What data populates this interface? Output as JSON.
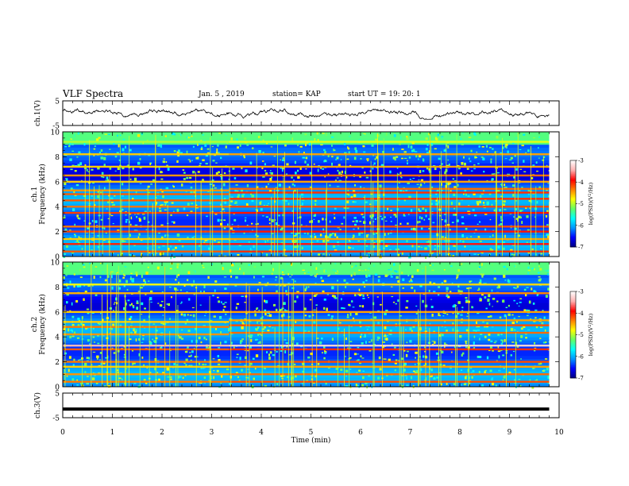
{
  "header": {
    "title": "VLF Spectra",
    "date": "Jan. 5 , 2019",
    "station": "station= KAP",
    "start": "start UT =  19: 20: 1"
  },
  "colors": {
    "colormap": [
      "#00007f",
      "#0000ff",
      "#0096ff",
      "#00ffff",
      "#64ff64",
      "#ffff00",
      "#ff8000",
      "#ff0000",
      "#ffb0b0",
      "#ffffff"
    ]
  },
  "chart_data": [
    {
      "type": "line",
      "panel": "ch1-waveform",
      "ylabel": "ch.1(V)",
      "ylim": [
        -5,
        5
      ],
      "yticks": [
        "5",
        "-5"
      ],
      "xlim": [
        0,
        10
      ],
      "x_extent": [
        0,
        9.8
      ],
      "description_values": {
        "mean": 0,
        "amplitude_range": [
          -2.5,
          2.5
        ]
      }
    },
    {
      "type": "heatmap",
      "panel": "ch1-spectrogram",
      "ylabel": "ch.1\nFrequency (kHz)",
      "ylabel_lines": [
        "ch.1",
        "Frequency (kHz)"
      ],
      "ylim": [
        0,
        10
      ],
      "yticks": [
        "0",
        "2",
        "4",
        "6",
        "8",
        "10"
      ],
      "xlim": [
        0,
        10
      ],
      "x_extent": [
        0,
        9.8
      ],
      "colorbar": {
        "label": "log(PSD)(V²/Hz)",
        "label_parts": [
          "log(PSD)(V",
          "2",
          "/Hz)"
        ],
        "range": [
          -7,
          -3
        ],
        "ticks": [
          "-3",
          "-4",
          "-5",
          "-6",
          "-7"
        ]
      },
      "bands_khz": [
        {
          "f": 0.4,
          "level": -4.2
        },
        {
          "f": 1.0,
          "level": -4.0
        },
        {
          "f": 1.4,
          "level": -4.6
        },
        {
          "f": 2.0,
          "level": -4.1
        },
        {
          "f": 2.4,
          "level": -4.3
        },
        {
          "f": 3.5,
          "level": -4.1
        },
        {
          "f": 4.0,
          "level": -4.3
        },
        {
          "f": 4.5,
          "level": -4.2
        },
        {
          "f": 5.0,
          "level": -4.2
        },
        {
          "f": 5.3,
          "level": -4.4
        },
        {
          "f": 6.0,
          "level": -4.6
        },
        {
          "f": 6.5,
          "level": -4.4
        },
        {
          "f": 7.2,
          "level": -4.6
        },
        {
          "f": 8.2,
          "level": -4.6
        },
        {
          "f": 9.2,
          "level": -5.0
        }
      ]
    },
    {
      "type": "heatmap",
      "panel": "ch2-spectrogram",
      "ylabel": "ch.2\nFrequency (kHz)",
      "ylabel_lines": [
        "ch.2",
        "Frequency (kHz)"
      ],
      "ylim": [
        0,
        10
      ],
      "yticks": [
        "0",
        "2",
        "4",
        "6",
        "8",
        "10"
      ],
      "xlim": [
        0,
        10
      ],
      "x_extent": [
        0,
        9.8
      ],
      "colorbar": {
        "label": "log(PSD)(V²/Hz)",
        "label_parts": [
          "log(PSD)(V",
          "2",
          "/Hz)"
        ],
        "range": [
          -7,
          -3
        ],
        "ticks": [
          "-3",
          "-4",
          "-5",
          "-6",
          "-7"
        ]
      },
      "bands_khz": [
        {
          "f": 0.4,
          "level": -4.3
        },
        {
          "f": 1.0,
          "level": -4.4
        },
        {
          "f": 1.6,
          "level": -4.6
        },
        {
          "f": 2.0,
          "level": -4.3
        },
        {
          "f": 3.0,
          "level": -4.2
        },
        {
          "f": 3.3,
          "level": -3.4
        },
        {
          "f": 4.2,
          "level": -4.4
        },
        {
          "f": 4.8,
          "level": -4.3
        },
        {
          "f": 5.2,
          "level": -4.6
        },
        {
          "f": 6.0,
          "level": -4.6
        },
        {
          "f": 7.5,
          "level": -4.5
        },
        {
          "f": 8.2,
          "level": -4.8
        }
      ]
    },
    {
      "type": "line",
      "panel": "ch3-waveform",
      "ylabel": "ch.3(V)",
      "ylim": [
        -5,
        5
      ],
      "yticks": [
        "5",
        "-5"
      ],
      "xlim": [
        0,
        10
      ],
      "x_extent": [
        0,
        9.8
      ],
      "constant_value": -1.5,
      "xlabel": "Time (min)",
      "xticks": [
        "0",
        "1",
        "2",
        "3",
        "4",
        "5",
        "6",
        "7",
        "8",
        "9",
        "10"
      ]
    }
  ]
}
